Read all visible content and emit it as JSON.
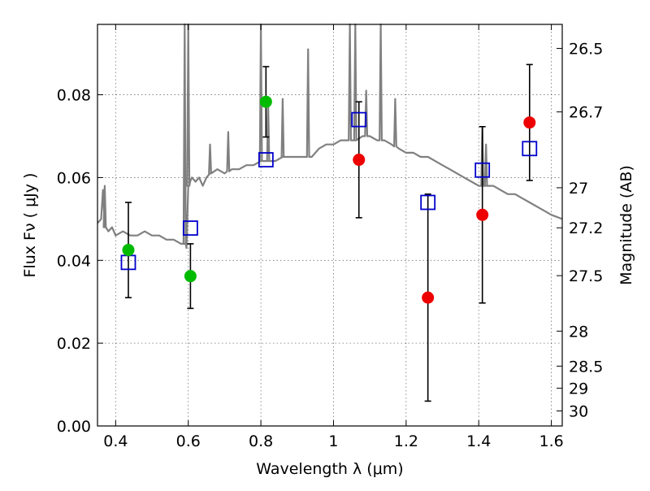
{
  "chart_data": {
    "type": "scatter",
    "xlabel": "Wavelength  λ (μm)",
    "ylabel": "Flux  Fν  ( μJy )",
    "y2label": "Magnitude (AB)",
    "xlim": [
      0.35,
      1.63
    ],
    "ylim": [
      0.0,
      0.097
    ],
    "x_ticks": [
      0.4,
      0.6,
      0.8,
      1.0,
      1.2,
      1.4,
      1.6
    ],
    "x_tick_labels": [
      "0.4",
      "0.6",
      "0.8",
      "1",
      "1.2",
      "1.4",
      "1.6"
    ],
    "y_ticks": [
      0.0,
      0.02,
      0.04,
      0.06,
      0.08
    ],
    "y_tick_labels": [
      "0.00",
      "0.02",
      "0.04",
      "0.06",
      "0.08"
    ],
    "mag_ticks": [
      26.5,
      26.7,
      27,
      27.2,
      27.5,
      28,
      28.5,
      29,
      30
    ],
    "mag_tick_labels": [
      "26.5",
      "26.7",
      "27",
      "27.2",
      "27.5",
      "28",
      "28.5",
      "29",
      "30"
    ],
    "grid": true,
    "series": [
      {
        "kind": "model-spectrum",
        "color": "#808080",
        "x": [
          0.35,
          0.36,
          0.365,
          0.37,
          0.38,
          0.39,
          0.4,
          0.42,
          0.44,
          0.46,
          0.48,
          0.5,
          0.52,
          0.54,
          0.56,
          0.58,
          0.59,
          0.595,
          0.6,
          0.605,
          0.61,
          0.62,
          0.63,
          0.64,
          0.65,
          0.66,
          0.68,
          0.7,
          0.72,
          0.74,
          0.76,
          0.78,
          0.8,
          0.82,
          0.84,
          0.86,
          0.88,
          0.9,
          0.92,
          0.94,
          0.96,
          0.98,
          1.0,
          1.02,
          1.04,
          1.06,
          1.08,
          1.1,
          1.12,
          1.14,
          1.16,
          1.18,
          1.2,
          1.22,
          1.24,
          1.26,
          1.28,
          1.3,
          1.32,
          1.34,
          1.36,
          1.38,
          1.4,
          1.42,
          1.44,
          1.46,
          1.48,
          1.5,
          1.52,
          1.54,
          1.56,
          1.58,
          1.6,
          1.63
        ],
        "y": [
          0.049,
          0.05,
          0.057,
          0.048,
          0.047,
          0.048,
          0.046,
          0.047,
          0.046,
          0.046,
          0.047,
          0.046,
          0.046,
          0.045,
          0.045,
          0.044,
          0.044,
          0.043,
          0.058,
          0.059,
          0.06,
          0.059,
          0.06,
          0.058,
          0.06,
          0.061,
          0.062,
          0.061,
          0.062,
          0.062,
          0.063,
          0.063,
          0.064,
          0.064,
          0.064,
          0.065,
          0.065,
          0.065,
          0.065,
          0.065,
          0.067,
          0.068,
          0.068,
          0.069,
          0.069,
          0.069,
          0.07,
          0.07,
          0.069,
          0.069,
          0.068,
          0.067,
          0.066,
          0.066,
          0.065,
          0.065,
          0.064,
          0.063,
          0.062,
          0.061,
          0.06,
          0.059,
          0.058,
          0.058,
          0.058,
          0.057,
          0.056,
          0.056,
          0.055,
          0.054,
          0.053,
          0.052,
          0.051,
          0.05
        ],
        "emission_lines": [
          {
            "x": 0.37,
            "peak": 0.058
          },
          {
            "x": 0.59,
            "peak": 0.097
          },
          {
            "x": 0.6,
            "peak": 0.097
          },
          {
            "x": 0.66,
            "peak": 0.068
          },
          {
            "x": 0.71,
            "peak": 0.071
          },
          {
            "x": 0.8,
            "peak": 0.097
          },
          {
            "x": 0.82,
            "peak": 0.078
          },
          {
            "x": 0.86,
            "peak": 0.079
          },
          {
            "x": 0.93,
            "peak": 0.091
          },
          {
            "x": 1.045,
            "peak": 0.097
          },
          {
            "x": 1.06,
            "peak": 0.097
          },
          {
            "x": 1.09,
            "peak": 0.081
          },
          {
            "x": 1.13,
            "peak": 0.097
          },
          {
            "x": 1.17,
            "peak": 0.079
          },
          {
            "x": 1.41,
            "peak": 0.072
          },
          {
            "x": 1.42,
            "peak": 0.068
          }
        ]
      },
      {
        "kind": "model-photometry",
        "marker": "open-square",
        "color": "#0000cc",
        "x": [
          0.435,
          0.606,
          0.814,
          1.07,
          1.26,
          1.41,
          1.54
        ],
        "y": [
          0.0395,
          0.0478,
          0.0643,
          0.074,
          0.054,
          0.0618,
          0.067
        ]
      },
      {
        "kind": "observed-green",
        "marker": "filled-circle",
        "color": "#00bb00",
        "x": [
          0.435,
          0.606,
          0.814
        ],
        "y": [
          0.0425,
          0.0362,
          0.0783
        ],
        "yerr": [
          0.0115,
          0.0078,
          0.0085
        ]
      },
      {
        "kind": "observed-red",
        "marker": "filled-circle",
        "color": "#ee0000",
        "x": [
          1.07,
          1.26,
          1.41,
          1.54
        ],
        "y": [
          0.0643,
          0.031,
          0.051,
          0.0733
        ],
        "yerr": [
          0.014,
          0.025,
          0.0213,
          0.014
        ]
      }
    ]
  }
}
